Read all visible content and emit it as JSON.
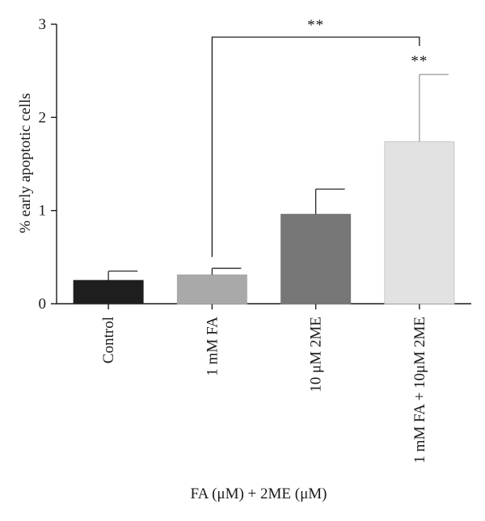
{
  "chart_data": {
    "type": "bar",
    "categories": [
      "Control",
      "1 mM FA",
      "10 μM 2ME",
      "1 mM FA + 10μM 2ME"
    ],
    "values": [
      0.25,
      0.31,
      0.96,
      1.74
    ],
    "errors": [
      0.1,
      0.07,
      0.27,
      0.72
    ],
    "colors": [
      "#1e1e1e",
      "#a9a9a9",
      "#777777",
      "#e2e2e2"
    ],
    "ylabel": "% early apoptotic cells",
    "xlabel": "FA (μM) + 2ME (μM)",
    "ylim": [
      0,
      3
    ],
    "yticks": [
      "0",
      "1",
      "2",
      "3"
    ],
    "grid": false,
    "annotations": {
      "bar_marker": {
        "category": "1 mM FA + 10μM 2ME",
        "text": "**"
      },
      "bracket": {
        "from": "1 mM FA",
        "to": "1 mM FA + 10μM 2ME",
        "text": "**"
      }
    }
  }
}
